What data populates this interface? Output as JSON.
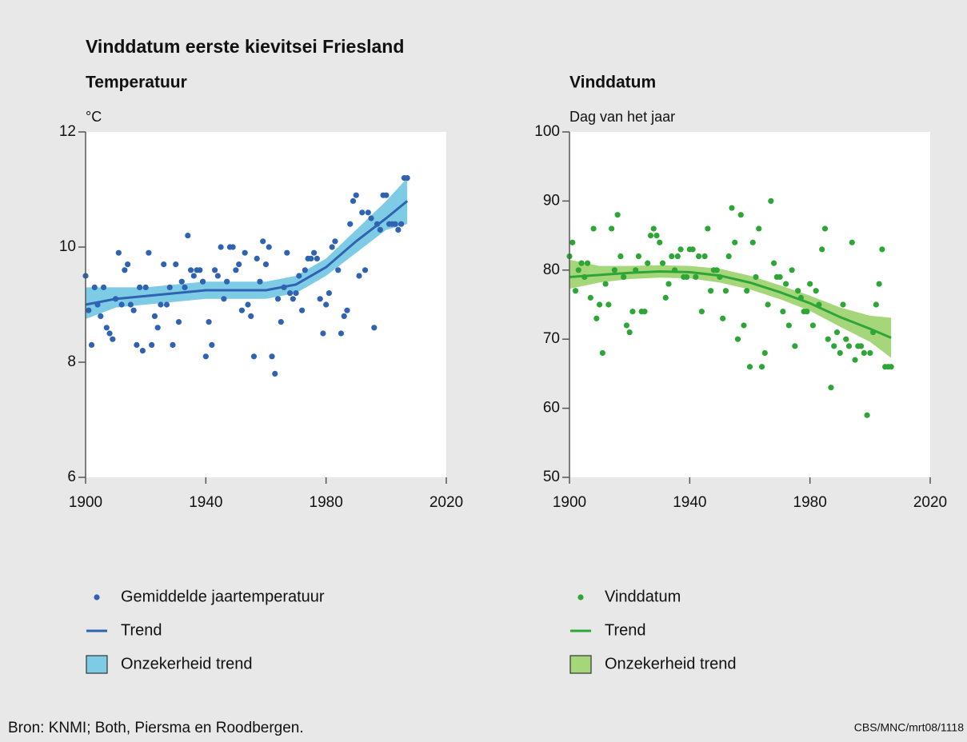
{
  "title": "Vinddatum eerste kievitsei Friesland",
  "source": "Bron: KNMI; Both, Piersma en Roodbergen.",
  "credit": "CBS/MNC/mrt08/1118",
  "chart_data": [
    {
      "type": "scatter",
      "title": "Temperatuur",
      "y_label": "°C",
      "xlim": [
        1900,
        2020
      ],
      "xticks": [
        1900,
        1940,
        1980,
        2020
      ],
      "ylim": [
        6,
        12
      ],
      "yticks": [
        6,
        8,
        10,
        12
      ],
      "series": [
        {
          "name": "Gemiddelde jaartemperatuur",
          "kind": "points",
          "color": "#2f62b0",
          "x": [
            1900,
            1901,
            1902,
            1903,
            1904,
            1905,
            1906,
            1907,
            1908,
            1909,
            1910,
            1911,
            1912,
            1913,
            1914,
            1915,
            1916,
            1917,
            1918,
            1919,
            1920,
            1921,
            1922,
            1923,
            1924,
            1925,
            1926,
            1927,
            1928,
            1929,
            1930,
            1931,
            1932,
            1933,
            1934,
            1935,
            1936,
            1937,
            1938,
            1939,
            1940,
            1941,
            1942,
            1943,
            1944,
            1945,
            1946,
            1947,
            1948,
            1949,
            1950,
            1951,
            1952,
            1953,
            1954,
            1955,
            1956,
            1957,
            1958,
            1959,
            1960,
            1961,
            1962,
            1963,
            1964,
            1965,
            1966,
            1967,
            1968,
            1969,
            1970,
            1971,
            1972,
            1973,
            1974,
            1975,
            1976,
            1977,
            1978,
            1979,
            1980,
            1981,
            1982,
            1983,
            1984,
            1985,
            1986,
            1987,
            1988,
            1989,
            1990,
            1991,
            1992,
            1993,
            1994,
            1995,
            1996,
            1997,
            1998,
            1999,
            2000,
            2001,
            2002,
            2003,
            2004,
            2005,
            2006,
            2007
          ],
          "values": [
            9.5,
            8.9,
            8.3,
            9.3,
            9.0,
            8.8,
            9.3,
            8.6,
            8.5,
            8.4,
            9.1,
            9.9,
            9.0,
            9.6,
            9.7,
            9.0,
            8.9,
            8.3,
            9.3,
            8.2,
            9.3,
            9.9,
            8.3,
            8.8,
            8.6,
            9.0,
            9.7,
            9.0,
            9.3,
            8.3,
            9.7,
            8.7,
            9.4,
            9.3,
            10.2,
            9.6,
            9.5,
            9.6,
            9.6,
            9.4,
            8.1,
            8.7,
            8.3,
            9.6,
            9.5,
            10.0,
            9.1,
            9.4,
            10.0,
            10.0,
            9.6,
            9.7,
            8.9,
            9.9,
            9.0,
            8.8,
            8.1,
            9.8,
            9.4,
            10.1,
            9.7,
            10.0,
            8.1,
            7.8,
            9.1,
            8.7,
            9.3,
            9.9,
            9.2,
            9.1,
            9.2,
            9.5,
            8.9,
            9.6,
            9.8,
            9.8,
            9.9,
            9.8,
            9.1,
            8.5,
            9.0,
            9.2,
            10.0,
            10.1,
            9.6,
            8.5,
            8.8,
            8.9,
            10.4,
            10.8,
            10.9,
            9.5,
            10.6,
            9.6,
            10.6,
            10.5,
            8.6,
            10.4,
            10.3,
            10.9,
            10.9,
            10.4,
            10.4,
            10.4,
            10.3,
            10.4,
            11.2,
            11.2
          ]
        },
        {
          "name": "Trend",
          "kind": "line",
          "color": "#2f62b0",
          "x": [
            1900,
            1910,
            1920,
            1930,
            1940,
            1950,
            1960,
            1970,
            1980,
            1990,
            2000,
            2007
          ],
          "values": [
            9.0,
            9.1,
            9.15,
            9.2,
            9.25,
            9.25,
            9.25,
            9.35,
            9.65,
            10.1,
            10.5,
            10.8
          ]
        },
        {
          "name": "Onzekerheid trend",
          "kind": "band",
          "color": "#7ecbe5",
          "x": [
            1900,
            1910,
            1920,
            1930,
            1940,
            1950,
            1960,
            1970,
            1980,
            1990,
            2000,
            2007
          ],
          "lower": [
            8.75,
            8.95,
            9.0,
            9.05,
            9.1,
            9.1,
            9.1,
            9.2,
            9.5,
            9.9,
            10.3,
            10.4
          ],
          "upper": [
            9.3,
            9.3,
            9.3,
            9.35,
            9.4,
            9.4,
            9.4,
            9.5,
            9.8,
            10.3,
            10.8,
            11.2
          ]
        }
      ]
    },
    {
      "type": "scatter",
      "title": "Vinddatum",
      "y_label": "Dag van het jaar",
      "xlim": [
        1900,
        2020
      ],
      "xticks": [
        1900,
        1940,
        1980,
        2020
      ],
      "ylim": [
        50,
        100
      ],
      "yticks": [
        50,
        60,
        70,
        80,
        90,
        100
      ],
      "series": [
        {
          "name": "Vinddatum",
          "kind": "points",
          "color": "#2ea637",
          "x": [
            1900,
            1901,
            1902,
            1903,
            1904,
            1905,
            1906,
            1907,
            1908,
            1909,
            1910,
            1911,
            1912,
            1913,
            1914,
            1915,
            1916,
            1917,
            1918,
            1919,
            1920,
            1921,
            1922,
            1923,
            1924,
            1925,
            1926,
            1927,
            1928,
            1929,
            1930,
            1931,
            1932,
            1933,
            1934,
            1935,
            1936,
            1937,
            1938,
            1939,
            1940,
            1941,
            1942,
            1943,
            1944,
            1945,
            1946,
            1947,
            1948,
            1949,
            1950,
            1951,
            1952,
            1953,
            1954,
            1955,
            1956,
            1957,
            1958,
            1959,
            1960,
            1961,
            1962,
            1963,
            1964,
            1965,
            1966,
            1967,
            1968,
            1969,
            1970,
            1971,
            1972,
            1973,
            1974,
            1975,
            1976,
            1977,
            1978,
            1979,
            1980,
            1981,
            1982,
            1983,
            1984,
            1985,
            1986,
            1987,
            1988,
            1989,
            1990,
            1991,
            1992,
            1993,
            1994,
            1995,
            1996,
            1997,
            1998,
            1999,
            2000,
            2001,
            2002,
            2003,
            2004,
            2005,
            2006,
            2007
          ],
          "values": [
            82,
            84,
            77,
            80,
            81,
            79,
            81,
            76,
            86,
            73,
            75,
            68,
            78,
            75,
            86,
            80,
            88,
            82,
            79,
            72,
            71,
            74,
            80,
            82,
            74,
            74,
            81,
            85,
            86,
            85,
            84,
            81,
            76,
            78,
            82,
            80,
            82,
            83,
            79,
            79,
            83,
            83,
            79,
            82,
            74,
            82,
            86,
            77,
            80,
            80,
            79,
            73,
            77,
            82,
            89,
            84,
            70,
            88,
            72,
            77,
            66,
            84,
            79,
            86,
            66,
            68,
            75,
            90,
            81,
            79,
            79,
            74,
            78,
            72,
            80,
            69,
            77,
            76,
            74,
            74,
            78,
            72,
            77,
            75,
            83,
            86,
            70,
            63,
            69,
            71,
            68,
            75,
            70,
            69,
            84,
            67,
            69,
            69,
            68,
            59,
            68,
            71,
            75,
            78,
            83,
            66,
            66,
            66
          ]
        },
        {
          "name": "Trend",
          "kind": "line",
          "color": "#2ea637",
          "x": [
            1900,
            1910,
            1920,
            1930,
            1940,
            1950,
            1960,
            1970,
            1980,
            1990,
            2000,
            2007
          ],
          "values": [
            79,
            79.3,
            79.6,
            79.8,
            79.7,
            79.2,
            78.2,
            76.8,
            75.2,
            73.2,
            71.5,
            70.2
          ]
        },
        {
          "name": "Onzekerheid trend",
          "kind": "band",
          "color": "#a6d67a",
          "x": [
            1900,
            1910,
            1920,
            1930,
            1940,
            1950,
            1960,
            1970,
            1980,
            1990,
            2000,
            2007
          ],
          "lower": [
            77.3,
            78.2,
            78.7,
            78.9,
            78.8,
            78.2,
            77.2,
            75.8,
            74.1,
            71.8,
            69.6,
            67.3
          ],
          "upper": [
            81.5,
            80.6,
            80.6,
            80.7,
            80.6,
            80.2,
            79.2,
            77.8,
            76.3,
            74.6,
            73.4,
            73.1
          ]
        }
      ]
    }
  ]
}
